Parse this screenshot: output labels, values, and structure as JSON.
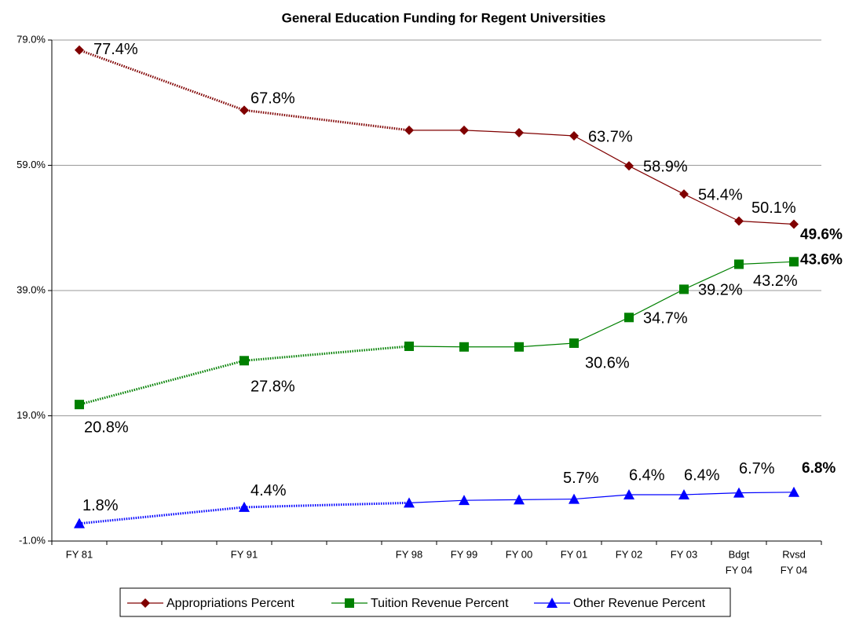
{
  "chart_data": {
    "type": "line",
    "title": "General Education Funding for Regent Universities",
    "categories": [
      "FY 81",
      null,
      null,
      "FY 91",
      null,
      null,
      "FY 98",
      "FY 99",
      "FY 00",
      "FY 01",
      "FY 02",
      "FY 03",
      [
        "Bdgt",
        "FY 04"
      ],
      [
        "Rvsd",
        "FY 04"
      ]
    ],
    "ylim": [
      -1,
      79
    ],
    "yticks": [
      {
        "value": -1,
        "label": "-1.0%"
      },
      {
        "value": 19,
        "label": "19.0%"
      },
      {
        "value": 39,
        "label": "39.0%"
      },
      {
        "value": 59,
        "label": "59.0%"
      },
      {
        "value": 79,
        "label": "79.0%"
      }
    ],
    "grid": true,
    "legend": "bottom",
    "series": [
      {
        "name": "Appropriations Percent",
        "color": "#800000",
        "marker": "diamond",
        "values": [
          77.4,
          null,
          null,
          67.8,
          null,
          null,
          64.6,
          64.6,
          64.2,
          63.7,
          58.9,
          54.4,
          50.1,
          49.6
        ],
        "value_labels": [
          "77.4%",
          null,
          null,
          "67.8%",
          null,
          null,
          null,
          null,
          null,
          "63.7%",
          "58.9%",
          "54.4%",
          "50.1%",
          "49.6%"
        ]
      },
      {
        "name": "Tuition Revenue Percent",
        "color": "#008000",
        "marker": "square",
        "values": [
          20.8,
          null,
          null,
          27.8,
          null,
          null,
          30.1,
          30.0,
          30.0,
          30.6,
          34.7,
          39.2,
          43.2,
          43.6
        ],
        "value_labels": [
          "20.8%",
          null,
          null,
          "27.8%",
          null,
          null,
          null,
          null,
          null,
          "30.6%",
          "34.7%",
          "39.2%",
          "43.2%",
          "43.6%"
        ]
      },
      {
        "name": "Other Revenue Percent",
        "color": "#0000ff",
        "marker": "triangle",
        "values": [
          1.8,
          null,
          null,
          4.4,
          null,
          null,
          5.1,
          5.5,
          5.6,
          5.7,
          6.4,
          6.4,
          6.7,
          6.8
        ],
        "value_labels": [
          "1.8%",
          null,
          null,
          "4.4%",
          null,
          null,
          null,
          null,
          null,
          "5.7%",
          "6.4%",
          "6.4%",
          "6.7%",
          "6.8%"
        ]
      }
    ]
  }
}
